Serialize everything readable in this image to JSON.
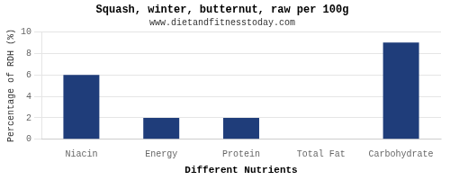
{
  "chart_data": {
    "type": "bar",
    "title": "Squash, winter, butternut, raw per 100g",
    "subtitle": "www.dietandfitnesstoday.com",
    "xlabel": "Different Nutrients",
    "ylabel": "Percentage of RDH (%)",
    "categories": [
      "Niacin",
      "Energy",
      "Protein",
      "Total Fat",
      "Carbohydrate"
    ],
    "values": [
      6,
      2,
      2,
      0,
      9
    ],
    "color": "#1f3d7a",
    "ylim": [
      0,
      10
    ],
    "yticks": [
      0,
      2,
      4,
      6,
      8,
      10
    ],
    "grid": true
  }
}
